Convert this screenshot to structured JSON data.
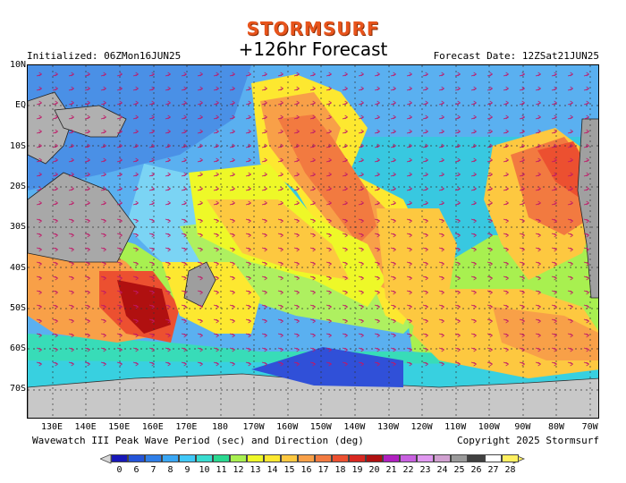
{
  "header": {
    "logo": "STORMSURF",
    "title": "+126hr Forecast",
    "initialized": "Initialized: 06ZMon16JUN25",
    "forecast_date": "Forecast Date: 12ZSat21JUN25"
  },
  "footer": {
    "caption": "Wavewatch III Peak Wave Period (sec) and Direction (deg)",
    "copyright": "Copyright 2025 Stormsurf"
  },
  "map": {
    "lat_labels": [
      "10N",
      "EQ",
      "10S",
      "20S",
      "30S",
      "40S",
      "50S",
      "60S",
      "70S"
    ],
    "lon_labels": [
      "130E",
      "140E",
      "150E",
      "160E",
      "170E",
      "180",
      "170W",
      "160W",
      "150W",
      "140W",
      "130W",
      "120W",
      "110W",
      "100W",
      "90W",
      "80W",
      "70W"
    ]
  },
  "legend": {
    "values": [
      "0",
      "6",
      "7",
      "8",
      "9",
      "10",
      "11",
      "12",
      "13",
      "14",
      "15",
      "16",
      "17",
      "18",
      "19",
      "20",
      "21",
      "22",
      "23",
      "24",
      "25",
      "26",
      "27",
      "28"
    ],
    "colors": [
      "#1818b8",
      "#2454d8",
      "#2f7fe8",
      "#3aa7f4",
      "#40c8f8",
      "#38dcd0",
      "#2ad890",
      "#a8f050",
      "#eef828",
      "#fde830",
      "#fdc840",
      "#f8a048",
      "#f27a40",
      "#ec5030",
      "#d82820",
      "#b01010",
      "#b020c0",
      "#c860e0",
      "#e098f0",
      "#d0a0d0",
      "#9a9a9a",
      "#404040",
      "#ffffff",
      "#fff060"
    ]
  }
}
